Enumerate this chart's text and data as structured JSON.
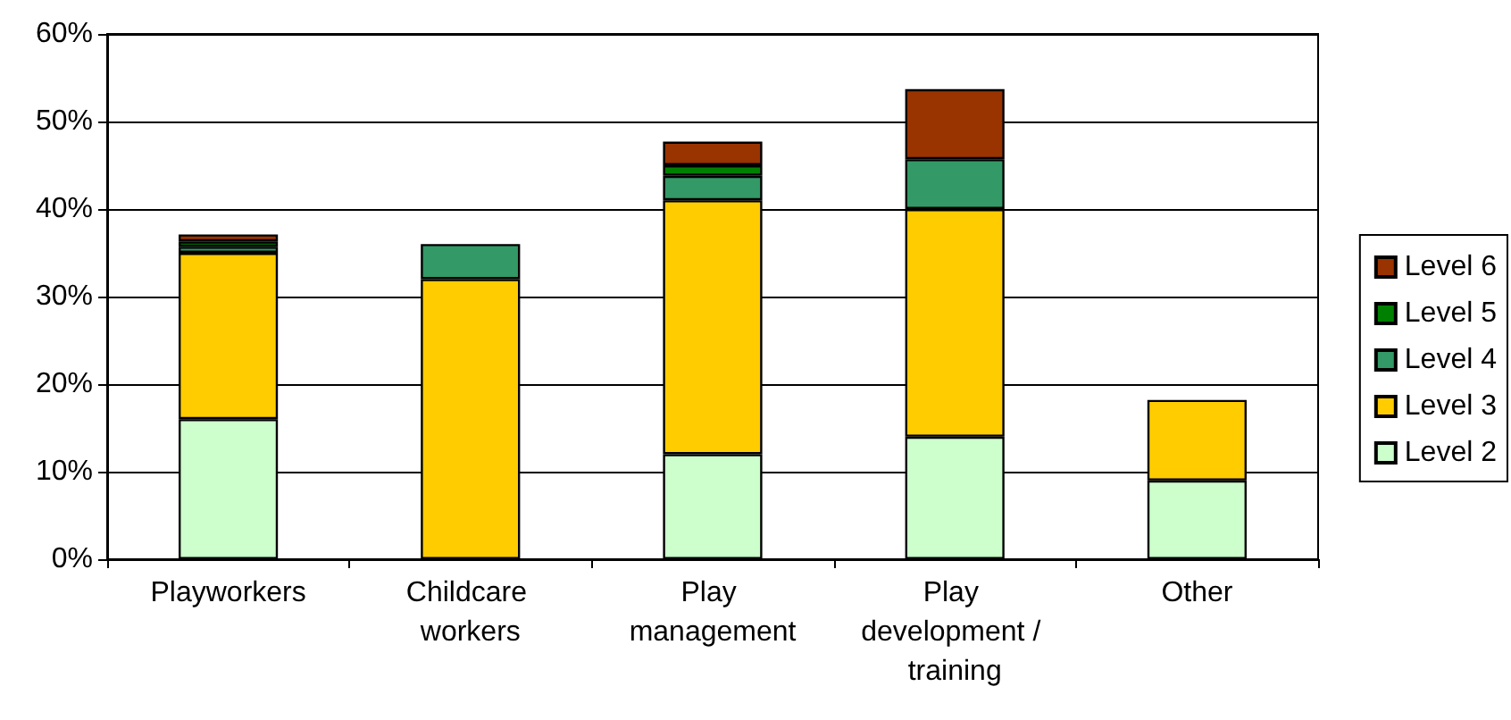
{
  "chart_data": {
    "type": "bar",
    "stacked": true,
    "categories": [
      "Playworkers",
      "Childcare workers",
      "Play management",
      "Play development / training",
      "Other"
    ],
    "series": [
      {
        "name": "Level 2",
        "color": "#ccffcc",
        "values": [
          16,
          0,
          12,
          14,
          9
        ]
      },
      {
        "name": "Level 3",
        "color": "#ffcc00",
        "values": [
          19,
          32,
          29,
          26,
          9.2
        ]
      },
      {
        "name": "Level 4",
        "color": "#339966",
        "values": [
          0.7,
          4,
          2.8,
          5.7,
          0
        ]
      },
      {
        "name": "Level 5",
        "color": "#008000",
        "values": [
          0.6,
          0,
          1.2,
          0,
          0
        ]
      },
      {
        "name": "Level 6",
        "color": "#993300",
        "values": [
          0.8,
          0,
          2.7,
          8,
          0
        ]
      }
    ],
    "ylim": [
      0,
      60
    ],
    "yticks": [
      {
        "value": 0,
        "label": "0%"
      },
      {
        "value": 10,
        "label": "10%"
      },
      {
        "value": 20,
        "label": "20%"
      },
      {
        "value": 30,
        "label": "30%"
      },
      {
        "value": 40,
        "label": "40%"
      },
      {
        "value": 50,
        "label": "50%"
      },
      {
        "value": 60,
        "label": "60%"
      }
    ],
    "grid": "y",
    "legend": "right"
  }
}
